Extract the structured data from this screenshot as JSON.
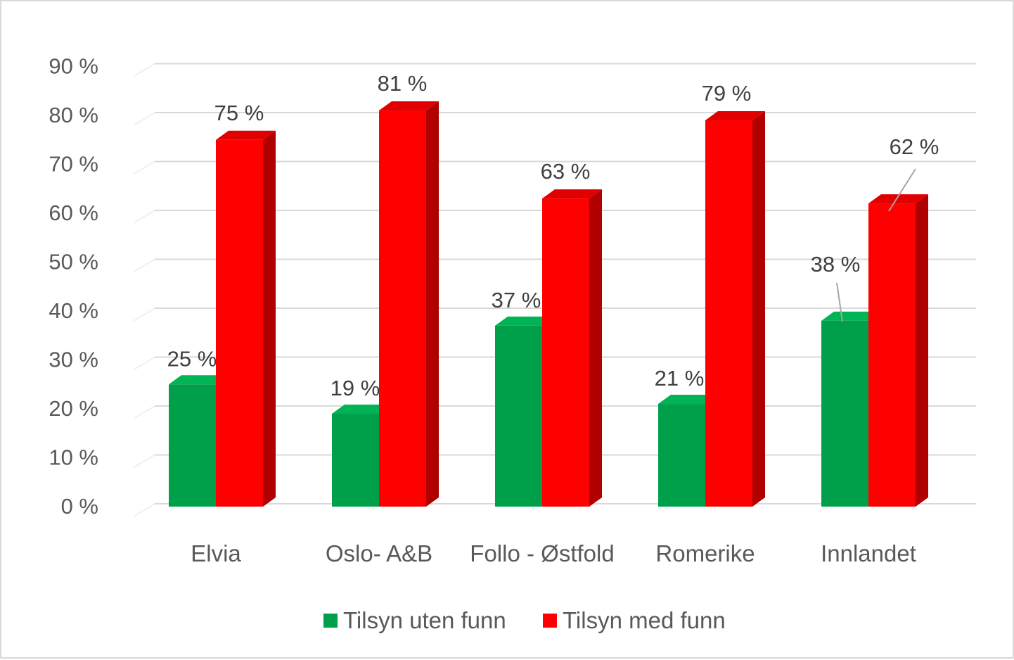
{
  "chart_data": {
    "type": "bar",
    "categories": [
      "Elvia",
      "Oslo- A&B",
      "Follo - Østfold",
      "Romerike",
      "Innlandet"
    ],
    "series": [
      {
        "name": "Tilsyn uten funn",
        "values": [
          25,
          19,
          37,
          21,
          38
        ],
        "labels": [
          "25 %",
          "19 %",
          "37 %",
          "21 %",
          "38 %"
        ],
        "color": "#00a04b",
        "side_color": "#007a38",
        "top_color": "#00b355"
      },
      {
        "name": "Tilsyn med funn",
        "values": [
          75,
          81,
          63,
          79,
          62
        ],
        "labels": [
          "75 %",
          "81 %",
          "63 %",
          "79 %",
          "62 %"
        ],
        "color": "#ff0000",
        "side_color": "#b00000",
        "top_color": "#e00000"
      }
    ],
    "ylim": [
      0,
      90
    ],
    "y_ticks": [
      0,
      10,
      20,
      30,
      40,
      50,
      60,
      70,
      80,
      90
    ],
    "y_tick_labels": [
      "0 %",
      "10 %",
      "20 %",
      "30 %",
      "40 %",
      "50 %",
      "60 %",
      "70 %",
      "80 %",
      "90 %"
    ],
    "grid": true,
    "legend_position": "bottom",
    "style": "3d-column",
    "title": "",
    "xlabel": "",
    "ylabel": ""
  }
}
